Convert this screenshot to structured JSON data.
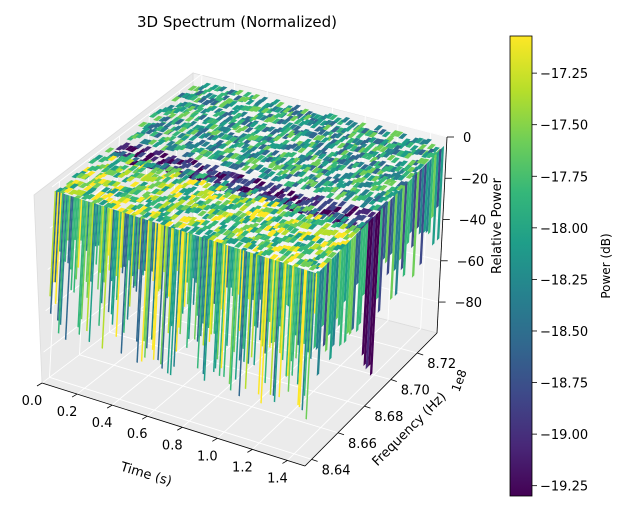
{
  "chart_data": {
    "type": "surface3d",
    "title": "3D Spectrum (Normalized)",
    "x_axis": {
      "label": "Time (s)",
      "ticks": [
        "0.0",
        "0.2",
        "0.4",
        "0.6",
        "0.8",
        "1.0",
        "1.2",
        "1.4"
      ],
      "range": [
        0.0,
        1.5
      ]
    },
    "y_axis": {
      "label": "Frequency (Hz)",
      "offset_text": "1e8",
      "ticks": [
        "8.64",
        "8.66",
        "8.68",
        "8.70",
        "8.72"
      ],
      "range": [
        8.635,
        8.735
      ]
    },
    "z_axis": {
      "label": "Relative Power",
      "ticks": [
        "0",
        "−20",
        "−40",
        "−60",
        "−80"
      ],
      "range": [
        -95,
        0
      ]
    },
    "colorbar": {
      "label": "Power (dB)",
      "colormap": "viridis",
      "ticks": [
        "−17.25",
        "−17.50",
        "−17.75",
        "−18.00",
        "−18.25",
        "−18.50",
        "−18.75",
        "−19.00",
        "−19.25"
      ],
      "range": [
        -19.3,
        -17.07
      ]
    },
    "surface": {
      "time_range": [
        0.0,
        1.5
      ],
      "frequency_range": [
        8.635,
        8.735
      ],
      "typical_level_db": -18.0,
      "notch": {
        "frequency": 8.68,
        "level_db": -19.2
      },
      "noise_floor_drop": -90
    },
    "grid": true,
    "colors": {
      "viridis": [
        "#440154",
        "#482878",
        "#3e4989",
        "#31688e",
        "#26828e",
        "#1f9e89",
        "#35b779",
        "#6ece58",
        "#b5de2b",
        "#fde725"
      ]
    }
  }
}
